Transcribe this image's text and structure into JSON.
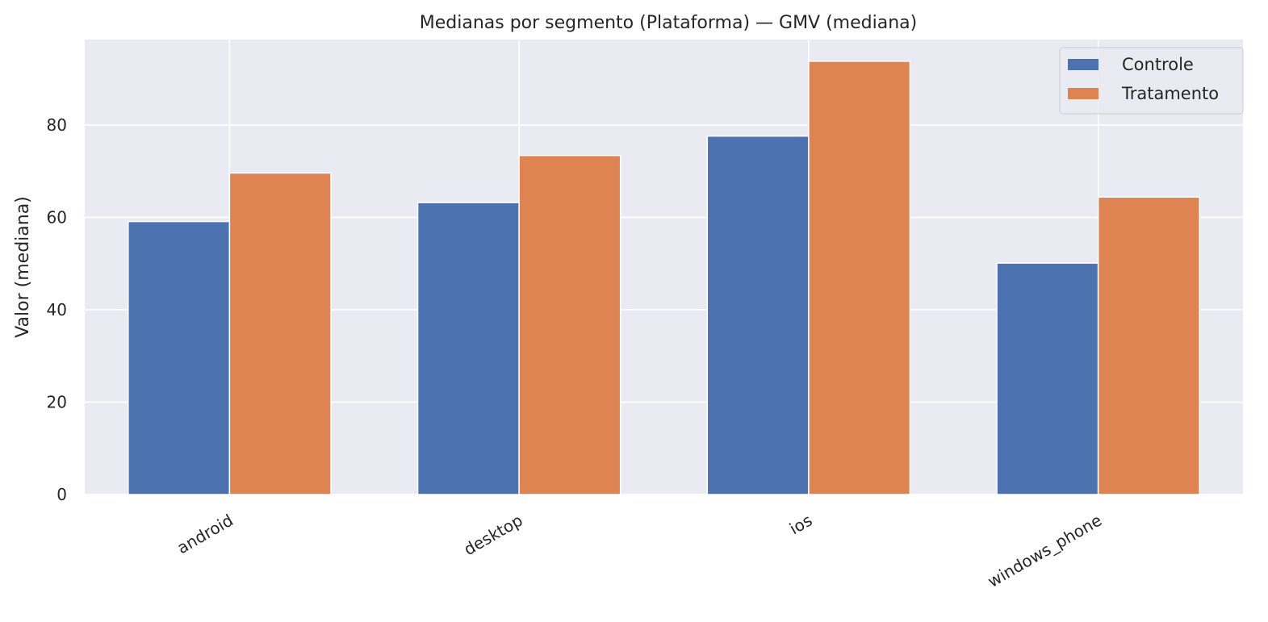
{
  "chart_data": {
    "type": "bar",
    "title": "Medianas por segmento (Plataforma) — GMV (mediana)",
    "xlabel": "",
    "ylabel": "Valor (mediana)",
    "categories": [
      "android",
      "desktop",
      "ios",
      "windows_phone"
    ],
    "series": [
      {
        "name": "Controle",
        "color": "#4c72b0",
        "values": [
          59.1,
          63.2,
          77.6,
          50.1
        ]
      },
      {
        "name": "Tratamento",
        "color": "#dd8452",
        "values": [
          69.6,
          73.4,
          93.8,
          64.4
        ]
      }
    ],
    "ylim": [
      0,
      98.5
    ],
    "yticks": [
      0,
      20,
      40,
      60,
      80
    ],
    "grid": true,
    "legend_position": "top-right",
    "background": "#eaeaf2"
  }
}
